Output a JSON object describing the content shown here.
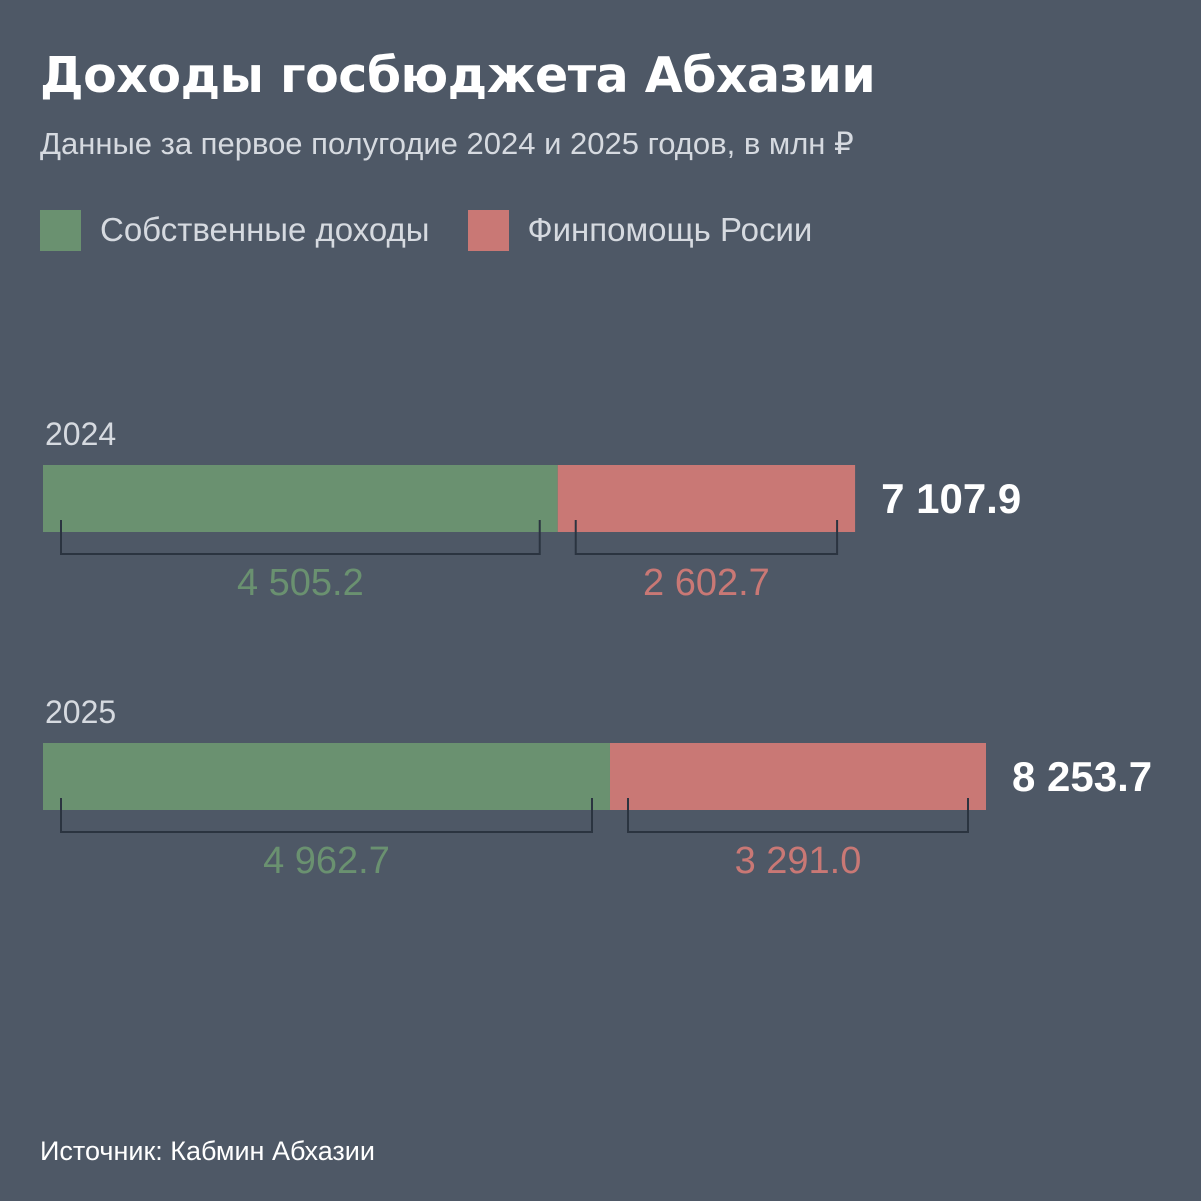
{
  "header": {
    "title": "Доходы госбюджета Абхазии",
    "subtitle": "Данные за первое полугодие 2024 и 2025 годов, в млн ₽"
  },
  "legend": [
    {
      "label": "Собственные доходы",
      "color": "#6a9170"
    },
    {
      "label": "Финпомощь Росии",
      "color": "#c97875"
    }
  ],
  "chart_data": {
    "type": "bar",
    "orientation": "horizontal",
    "stacked": true,
    "unit": "млн ₽",
    "categories": [
      "2024",
      "2025"
    ],
    "series": [
      {
        "name": "Собственные доходы",
        "color": "#6a9170",
        "values": [
          4505.2,
          4962.7
        ],
        "labels": [
          "4 505.2",
          "4 962.7"
        ]
      },
      {
        "name": "Финпомощь Росии",
        "color": "#c97875",
        "values": [
          2602.7,
          3291.0
        ],
        "labels": [
          "2 602.7",
          "3 291.0"
        ]
      }
    ],
    "totals": [
      7107.9,
      8253.7
    ],
    "total_labels": [
      "7 107.9",
      "8 253.7"
    ],
    "xlim": [
      0,
      8253.7
    ],
    "grid": false,
    "legend_position": "top-left"
  },
  "footer": {
    "source": "Источник: Кабмин Абхазии"
  },
  "colors": {
    "background": "#4e5866",
    "bracket": "#2b3440",
    "text": "#ffffff",
    "muted_text": "#d6dae0"
  }
}
